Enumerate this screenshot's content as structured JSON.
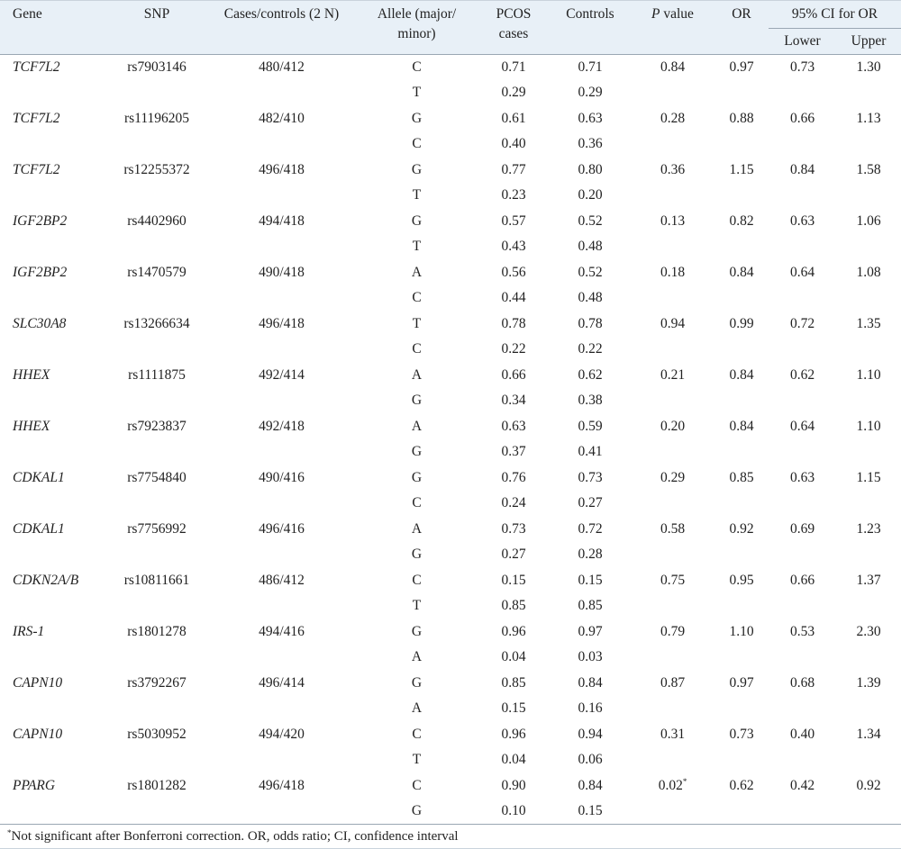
{
  "headers": {
    "gene": "Gene",
    "snp": "SNP",
    "cases_controls": "Cases/controls (2 N)",
    "allele": "Allele (major/ minor)",
    "pcos_cases": "PCOS cases",
    "controls": "Controls",
    "p_value_italic": "P",
    "p_value_rest": " value",
    "or": "OR",
    "ci": "95% CI for OR",
    "lower": "Lower",
    "upper": "Upper"
  },
  "rows": [
    {
      "gene": "TCF7L2",
      "snp": "rs7903146",
      "cc": "480/412",
      "a1": "C",
      "a2": "T",
      "pc1": "0.71",
      "pc2": "0.29",
      "c1": "0.71",
      "c2": "0.29",
      "p": "0.84",
      "p_sup": "",
      "or": "0.97",
      "lower": "0.73",
      "upper": "1.30"
    },
    {
      "gene": "TCF7L2",
      "snp": "rs11196205",
      "cc": "482/410",
      "a1": "G",
      "a2": "C",
      "pc1": "0.61",
      "pc2": "0.40",
      "c1": "0.63",
      "c2": "0.36",
      "p": "0.28",
      "p_sup": "",
      "or": "0.88",
      "lower": "0.66",
      "upper": "1.13"
    },
    {
      "gene": "TCF7L2",
      "snp": "rs12255372",
      "cc": "496/418",
      "a1": "G",
      "a2": "T",
      "pc1": "0.77",
      "pc2": "0.23",
      "c1": "0.80",
      "c2": "0.20",
      "p": "0.36",
      "p_sup": "",
      "or": "1.15",
      "lower": "0.84",
      "upper": "1.58"
    },
    {
      "gene": "IGF2BP2",
      "snp": "rs4402960",
      "cc": "494/418",
      "a1": "G",
      "a2": "T",
      "pc1": "0.57",
      "pc2": "0.43",
      "c1": "0.52",
      "c2": "0.48",
      "p": "0.13",
      "p_sup": "",
      "or": "0.82",
      "lower": "0.63",
      "upper": "1.06"
    },
    {
      "gene": "IGF2BP2",
      "snp": "rs1470579",
      "cc": "490/418",
      "a1": "A",
      "a2": "C",
      "pc1": "0.56",
      "pc2": "0.44",
      "c1": "0.52",
      "c2": "0.48",
      "p": "0.18",
      "p_sup": "",
      "or": "0.84",
      "lower": "0.64",
      "upper": "1.08"
    },
    {
      "gene": "SLC30A8",
      "snp": "rs13266634",
      "cc": "496/418",
      "a1": "T",
      "a2": "C",
      "pc1": "0.78",
      "pc2": "0.22",
      "c1": "0.78",
      "c2": "0.22",
      "p": "0.94",
      "p_sup": "",
      "or": "0.99",
      "lower": "0.72",
      "upper": "1.35"
    },
    {
      "gene": "HHEX",
      "snp": "rs1111875",
      "cc": "492/414",
      "a1": "A",
      "a2": "G",
      "pc1": "0.66",
      "pc2": "0.34",
      "c1": "0.62",
      "c2": "0.38",
      "p": "0.21",
      "p_sup": "",
      "or": "0.84",
      "lower": "0.62",
      "upper": "1.10"
    },
    {
      "gene": "HHEX",
      "snp": "rs7923837",
      "cc": "492/418",
      "a1": "A",
      "a2": "G",
      "pc1": "0.63",
      "pc2": "0.37",
      "c1": "0.59",
      "c2": "0.41",
      "p": "0.20",
      "p_sup": "",
      "or": "0.84",
      "lower": "0.64",
      "upper": "1.10"
    },
    {
      "gene": "CDKAL1",
      "snp": "rs7754840",
      "cc": "490/416",
      "a1": "G",
      "a2": "C",
      "pc1": "0.76",
      "pc2": "0.24",
      "c1": "0.73",
      "c2": "0.27",
      "p": "0.29",
      "p_sup": "",
      "or": "0.85",
      "lower": "0.63",
      "upper": "1.15"
    },
    {
      "gene": "CDKAL1",
      "snp": "rs7756992",
      "cc": "496/416",
      "a1": "A",
      "a2": "G",
      "pc1": "0.73",
      "pc2": "0.27",
      "c1": "0.72",
      "c2": "0.28",
      "p": "0.58",
      "p_sup": "",
      "or": "0.92",
      "lower": "0.69",
      "upper": "1.23"
    },
    {
      "gene": "CDKN2A/B",
      "snp": "rs10811661",
      "cc": "486/412",
      "a1": "C",
      "a2": "T",
      "pc1": "0.15",
      "pc2": "0.85",
      "c1": "0.15",
      "c2": "0.85",
      "p": "0.75",
      "p_sup": "",
      "or": "0.95",
      "lower": "0.66",
      "upper": "1.37"
    },
    {
      "gene": "IRS-1",
      "snp": "rs1801278",
      "cc": "494/416",
      "a1": "G",
      "a2": "A",
      "pc1": "0.96",
      "pc2": "0.04",
      "c1": "0.97",
      "c2": "0.03",
      "p": "0.79",
      "p_sup": "",
      "or": "1.10",
      "lower": "0.53",
      "upper": "2.30"
    },
    {
      "gene": "CAPN10",
      "snp": "rs3792267",
      "cc": "496/414",
      "a1": "G",
      "a2": "A",
      "pc1": "0.85",
      "pc2": "0.15",
      "c1": "0.84",
      "c2": "0.16",
      "p": "0.87",
      "p_sup": "",
      "or": "0.97",
      "lower": "0.68",
      "upper": "1.39"
    },
    {
      "gene": "CAPN10",
      "snp": "rs5030952",
      "cc": "494/420",
      "a1": "C",
      "a2": "T",
      "pc1": "0.96",
      "pc2": "0.04",
      "c1": "0.94",
      "c2": "0.06",
      "p": "0.31",
      "p_sup": "",
      "or": "0.73",
      "lower": "0.40",
      "upper": "1.34"
    },
    {
      "gene": "PPARG",
      "snp": "rs1801282",
      "cc": "496/418",
      "a1": "C",
      "a2": "G",
      "pc1": "0.90",
      "pc2": "0.10",
      "c1": "0.84",
      "c2": "0.15",
      "p": "0.02",
      "p_sup": "*",
      "or": "0.62",
      "lower": "0.42",
      "upper": "0.92"
    }
  ],
  "footnote": {
    "mark": "*",
    "text": "Not significant after Bonferroni correction. OR, odds ratio; CI, confidence interval"
  }
}
